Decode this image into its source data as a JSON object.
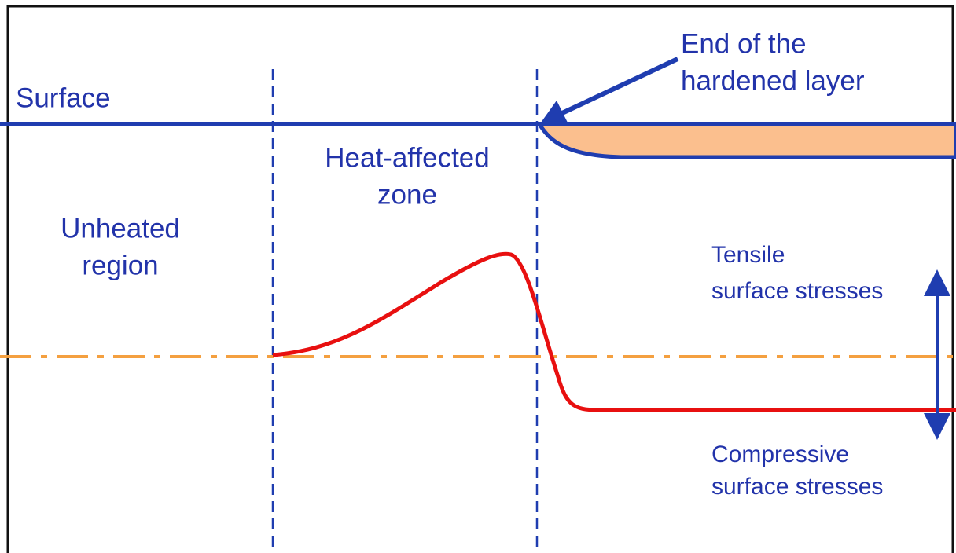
{
  "labels": {
    "surface": "Surface",
    "hardened_end": [
      "End of the",
      "hardened layer"
    ],
    "heat_affected": [
      "Heat-affected",
      "zone"
    ],
    "unheated": [
      "Unheated",
      "region"
    ],
    "tensile": [
      "Tensile",
      "surface stresses"
    ],
    "compressive": [
      "Compressive",
      "surface stresses"
    ]
  }
}
